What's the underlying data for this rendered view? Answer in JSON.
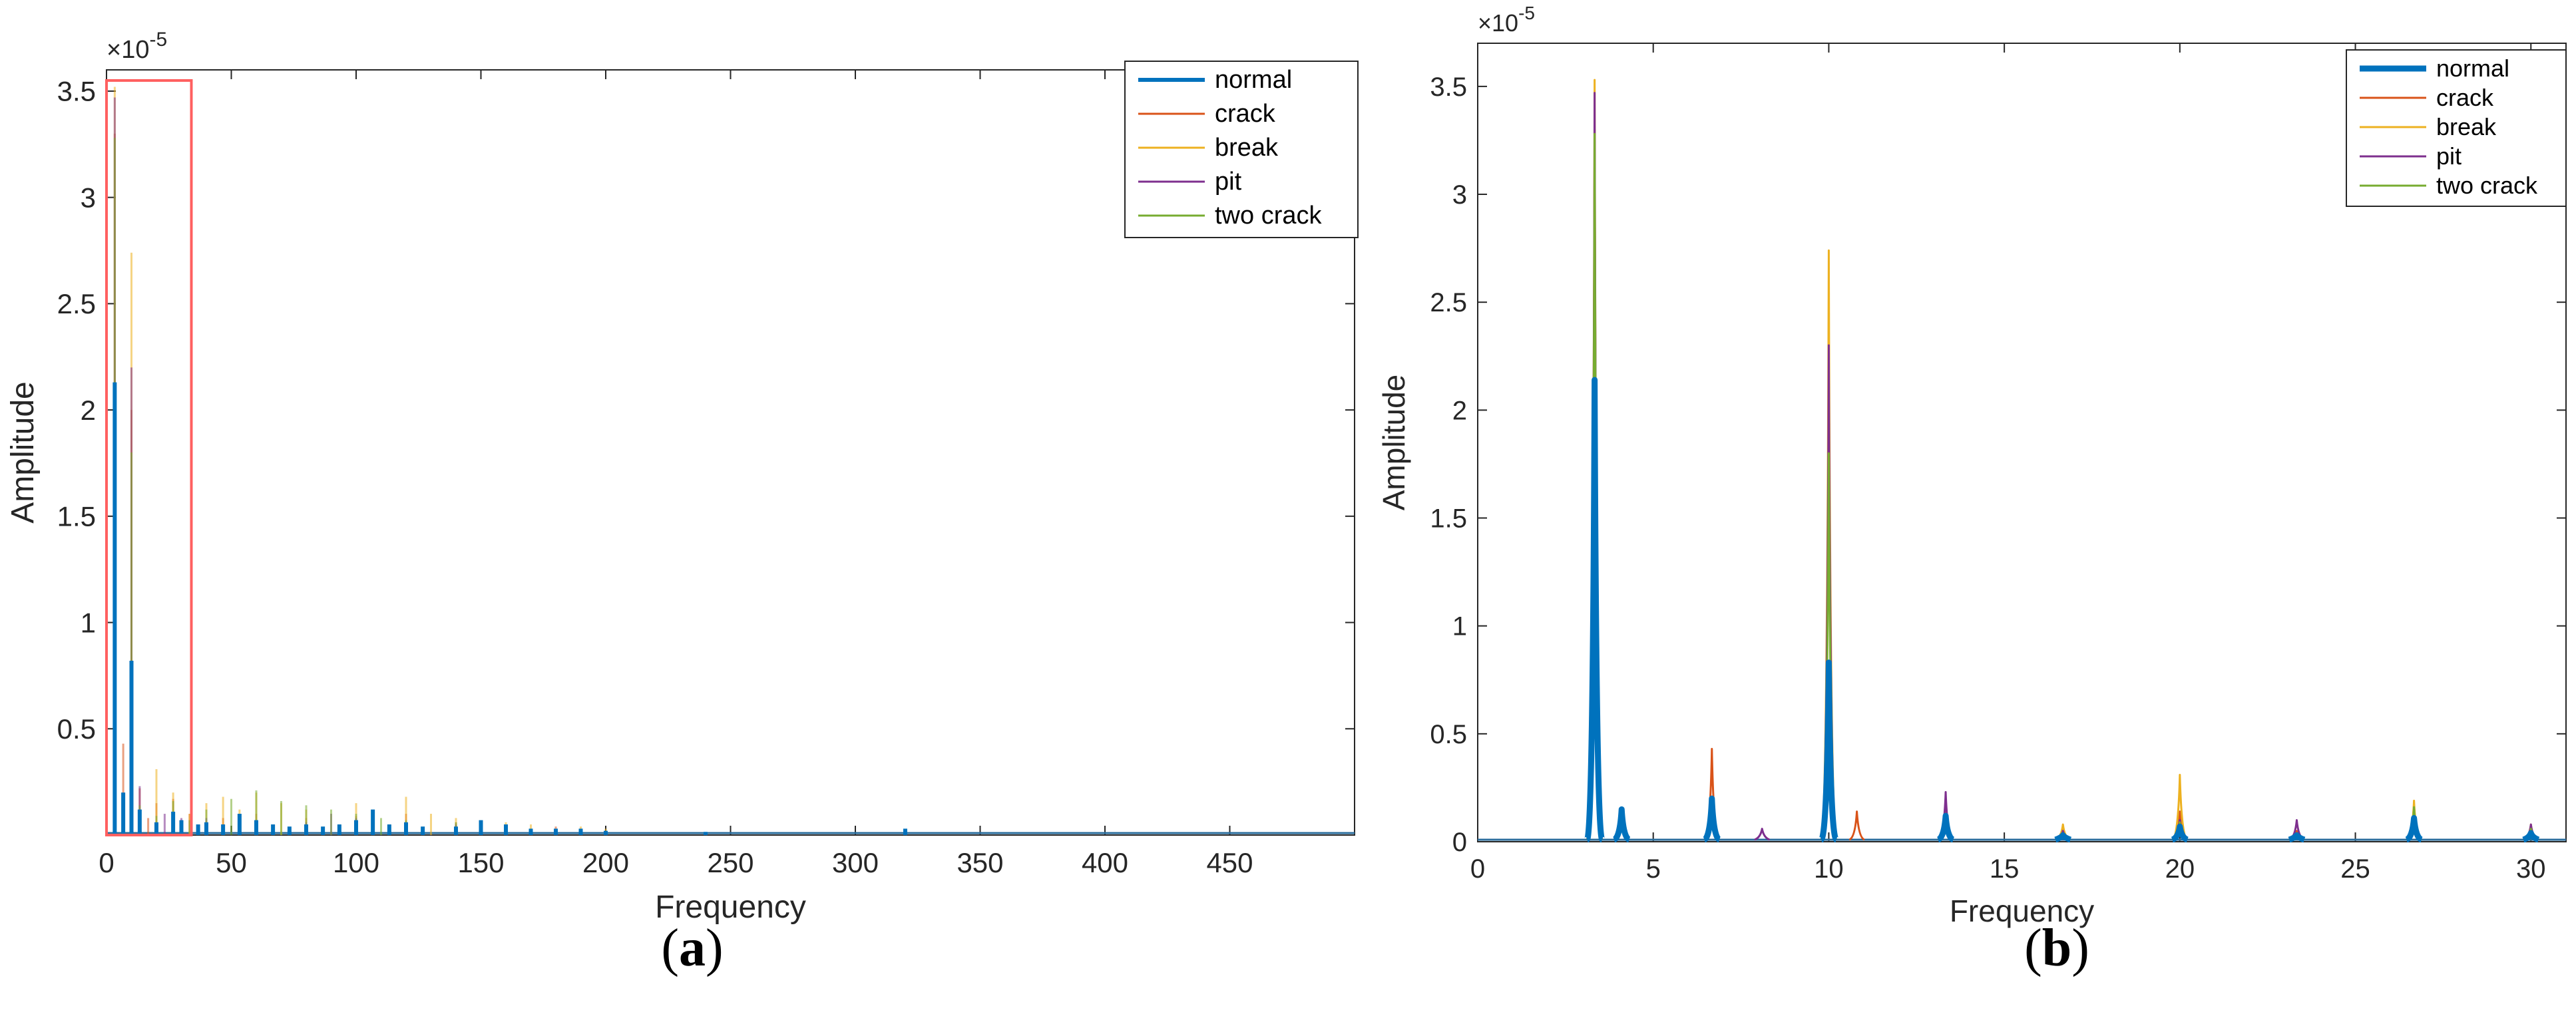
{
  "panels": [
    {
      "id": "a",
      "caption_letter": "a",
      "chart_data": {
        "type": "line",
        "xlabel": "Frequency",
        "ylabel": "Amplitude",
        "exponent_label": "×10",
        "exponent_power": "-5",
        "xlim": [
          0,
          500
        ],
        "ylim": [
          0,
          3.6
        ],
        "xticks": [
          0,
          50,
          100,
          150,
          200,
          250,
          300,
          350,
          400,
          450
        ],
        "yticks": [
          0.5,
          1,
          1.5,
          2,
          2.5,
          3,
          3.5
        ],
        "highlight_box": {
          "x0": 0,
          "x1": 34,
          "y0": 0,
          "y1": 3.55,
          "color": "#ff6060"
        },
        "legend_position": "top-right",
        "series": [
          {
            "name": "normal",
            "color": "#0072BD",
            "width": 6,
            "points": [
              [
                3.3,
                2.13
              ],
              [
                10,
                0.82
              ],
              [
                6.7,
                0.2
              ],
              [
                13.3,
                0.12
              ],
              [
                20,
                0.06
              ],
              [
                26.7,
                0.11
              ],
              [
                30,
                0.07
              ],
              [
                36.7,
                0.05
              ],
              [
                40,
                0.06
              ],
              [
                46.7,
                0.05
              ],
              [
                53.3,
                0.1
              ],
              [
                60,
                0.07
              ],
              [
                66.7,
                0.05
              ],
              [
                73.3,
                0.04
              ],
              [
                80,
                0.05
              ],
              [
                86.7,
                0.04
              ],
              [
                93.3,
                0.05
              ],
              [
                100,
                0.07
              ],
              [
                106.7,
                0.12
              ],
              [
                113.3,
                0.05
              ],
              [
                120,
                0.06
              ],
              [
                126.7,
                0.04
              ],
              [
                140,
                0.04
              ],
              [
                150,
                0.07
              ],
              [
                160,
                0.05
              ],
              [
                170,
                0.03
              ],
              [
                180,
                0.03
              ],
              [
                190,
                0.03
              ],
              [
                200,
                0.02
              ],
              [
                240,
                0.015
              ],
              [
                320,
                0.03
              ]
            ]
          },
          {
            "name": "crack",
            "color": "#D95319",
            "width": 3,
            "points": [
              [
                3.3,
                3.3
              ],
              [
                6.7,
                0.43
              ],
              [
                10,
                2.0
              ],
              [
                13.3,
                0.22
              ],
              [
                16.7,
                0.08
              ],
              [
                20,
                0.15
              ],
              [
                26.7,
                0.17
              ],
              [
                33.3,
                0.1
              ],
              [
                46.7,
                0.08
              ],
              [
                60,
                0.1
              ],
              [
                80,
                0.08
              ],
              [
                100,
                0.09
              ],
              [
                120,
                0.1
              ],
              [
                140,
                0.06
              ],
              [
                160,
                0.05
              ],
              [
                180,
                0.04
              ]
            ]
          },
          {
            "name": "break",
            "color": "#EDB120",
            "width": 3,
            "points": [
              [
                3.3,
                3.52
              ],
              [
                10,
                2.74
              ],
              [
                20,
                0.31
              ],
              [
                26.7,
                0.2
              ],
              [
                33.3,
                0.1
              ],
              [
                40,
                0.15
              ],
              [
                46.7,
                0.18
              ],
              [
                53.3,
                0.12
              ],
              [
                60,
                0.2
              ],
              [
                70,
                0.15
              ],
              [
                80,
                0.12
              ],
              [
                100,
                0.15
              ],
              [
                120,
                0.18
              ],
              [
                130,
                0.1
              ],
              [
                140,
                0.08
              ],
              [
                160,
                0.06
              ],
              [
                170,
                0.05
              ],
              [
                190,
                0.04
              ],
              [
                200,
                0.03
              ]
            ]
          },
          {
            "name": "pit",
            "color": "#7E2F8E",
            "width": 3,
            "points": [
              [
                3.3,
                3.47
              ],
              [
                6.7,
                0.2
              ],
              [
                10,
                2.2
              ],
              [
                13.3,
                0.23
              ],
              [
                23.3,
                0.1
              ],
              [
                30,
                0.08
              ],
              [
                40,
                0.08
              ],
              [
                60,
                0.07
              ],
              [
                80,
                0.06
              ],
              [
                90,
                0.1
              ],
              [
                100,
                0.08
              ],
              [
                120,
                0.06
              ],
              [
                140,
                0.05
              ]
            ]
          },
          {
            "name": "two crack",
            "color": "#77AC30",
            "width": 3,
            "points": [
              [
                3.3,
                3.28
              ],
              [
                6.7,
                0.18
              ],
              [
                10,
                1.8
              ],
              [
                13.3,
                0.14
              ],
              [
                20,
                0.09
              ],
              [
                26.7,
                0.16
              ],
              [
                33.3,
                0.07
              ],
              [
                40,
                0.12
              ],
              [
                50,
                0.17
              ],
              [
                60,
                0.21
              ],
              [
                70,
                0.16
              ],
              [
                80,
                0.14
              ],
              [
                90,
                0.12
              ],
              [
                100,
                0.1
              ],
              [
                110,
                0.08
              ],
              [
                120,
                0.07
              ],
              [
                140,
                0.06
              ]
            ]
          }
        ]
      }
    },
    {
      "id": "b",
      "caption_letter": "b",
      "chart_data": {
        "type": "line",
        "xlabel": "Frequency",
        "ylabel": "Amplitude",
        "exponent_label": "×10",
        "exponent_power": "-5",
        "xlim": [
          0,
          31
        ],
        "ylim": [
          0,
          3.7
        ],
        "xticks": [
          0,
          5,
          10,
          15,
          20,
          25,
          30
        ],
        "yticks": [
          0,
          0.5,
          1,
          1.5,
          2,
          2.5,
          3,
          3.5
        ],
        "legend_position": "top-right",
        "series": [
          {
            "name": "normal",
            "color": "#0072BD",
            "width": 9,
            "points": [
              [
                3.33,
                2.14
              ],
              [
                4.1,
                0.15
              ],
              [
                6.67,
                0.2
              ],
              [
                10,
                0.83
              ],
              [
                13.33,
                0.12
              ],
              [
                16.67,
                0.03
              ],
              [
                20,
                0.07
              ],
              [
                23.33,
                0.03
              ],
              [
                26.67,
                0.11
              ],
              [
                30,
                0.04
              ]
            ]
          },
          {
            "name": "crack",
            "color": "#D95319",
            "width": 3,
            "points": [
              [
                3.33,
                3.3
              ],
              [
                6.67,
                0.43
              ],
              [
                10,
                2.0
              ],
              [
                10.8,
                0.14
              ],
              [
                13.33,
                0.2
              ],
              [
                16.67,
                0.06
              ],
              [
                20,
                0.14
              ],
              [
                23.33,
                0.05
              ],
              [
                26.67,
                0.17
              ],
              [
                30,
                0.06
              ]
            ]
          },
          {
            "name": "break",
            "color": "#EDB120",
            "width": 3,
            "points": [
              [
                3.33,
                3.53
              ],
              [
                6.67,
                0.15
              ],
              [
                10,
                2.74
              ],
              [
                13.33,
                0.13
              ],
              [
                16.67,
                0.08
              ],
              [
                20,
                0.31
              ],
              [
                23.33,
                0.03
              ],
              [
                26.67,
                0.19
              ],
              [
                30,
                0.08
              ]
            ]
          },
          {
            "name": "pit",
            "color": "#7E2F8E",
            "width": 3,
            "points": [
              [
                3.33,
                3.47
              ],
              [
                6.67,
                0.18
              ],
              [
                8.1,
                0.06
              ],
              [
                10,
                2.3
              ],
              [
                13.33,
                0.23
              ],
              [
                16.67,
                0.05
              ],
              [
                20,
                0.1
              ],
              [
                23.33,
                0.1
              ],
              [
                26.67,
                0.15
              ],
              [
                30,
                0.08
              ]
            ]
          },
          {
            "name": "two crack",
            "color": "#77AC30",
            "width": 3,
            "points": [
              [
                3.33,
                3.28
              ],
              [
                6.67,
                0.19
              ],
              [
                10,
                1.8
              ],
              [
                13.33,
                0.13
              ],
              [
                16.67,
                0.04
              ],
              [
                20,
                0.09
              ],
              [
                23.33,
                0.04
              ],
              [
                26.67,
                0.16
              ],
              [
                30,
                0.06
              ]
            ]
          }
        ]
      }
    }
  ]
}
